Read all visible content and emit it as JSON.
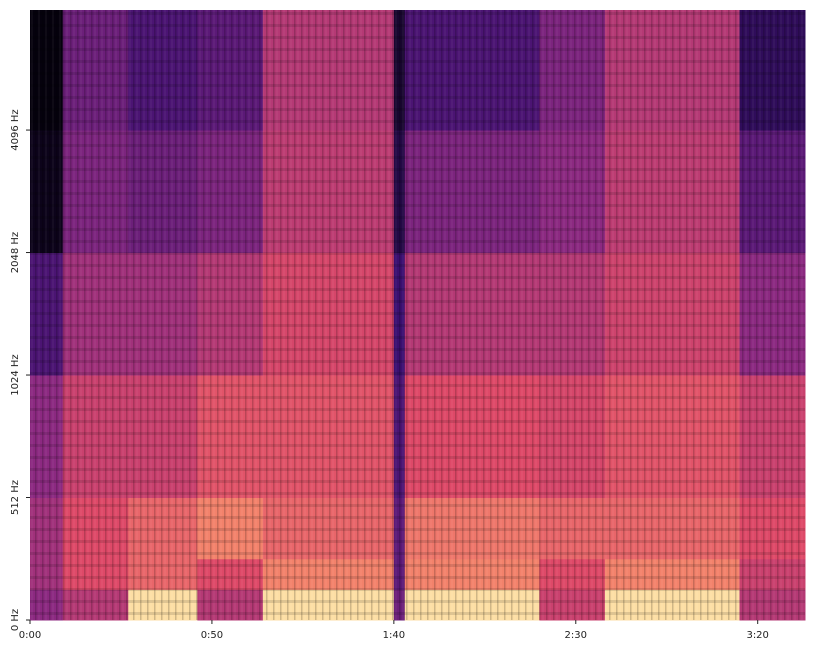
{
  "chart_data": {
    "type": "spectrogram",
    "x": [
      0,
      9,
      27,
      46,
      64,
      100,
      103,
      140,
      158,
      195,
      213
    ],
    "y": [
      0,
      128,
      256,
      512,
      1024,
      2048,
      4096,
      8080
    ],
    "values": [
      [
        0.5,
        0.6,
        0.95,
        0.6,
        0.95,
        0.4,
        0.95,
        0.65,
        0.95,
        0.6
      ],
      [
        0.55,
        0.7,
        0.75,
        0.7,
        0.8,
        0.35,
        0.8,
        0.7,
        0.8,
        0.65
      ],
      [
        0.55,
        0.7,
        0.75,
        0.8,
        0.75,
        0.35,
        0.78,
        0.75,
        0.75,
        0.7
      ],
      [
        0.5,
        0.65,
        0.65,
        0.72,
        0.72,
        0.3,
        0.7,
        0.68,
        0.72,
        0.65
      ],
      [
        0.3,
        0.55,
        0.55,
        0.6,
        0.68,
        0.25,
        0.6,
        0.6,
        0.66,
        0.5
      ],
      [
        0.05,
        0.45,
        0.4,
        0.45,
        0.62,
        0.15,
        0.45,
        0.5,
        0.62,
        0.35
      ],
      [
        0.02,
        0.4,
        0.3,
        0.35,
        0.6,
        0.1,
        0.3,
        0.45,
        0.6,
        0.2
      ]
    ],
    "colormap": "magma",
    "xlim": [
      0,
      213
    ],
    "ylim": [
      0,
      8080
    ],
    "yscale": "symlog",
    "linthresh": 512,
    "xticks": [
      {
        "value": 0,
        "label": "0:00"
      },
      {
        "value": 50,
        "label": "0:50"
      },
      {
        "value": 100,
        "label": "1:40"
      },
      {
        "value": 150,
        "label": "2:30"
      },
      {
        "value": 200,
        "label": "3:20"
      }
    ],
    "yticks": [
      {
        "value": 0,
        "label": "0 Hz"
      },
      {
        "value": 512,
        "label": "512 Hz"
      },
      {
        "value": 1024,
        "label": "1024 Hz"
      },
      {
        "value": 2048,
        "label": "2048 Hz"
      },
      {
        "value": 4096,
        "label": "4096 Hz"
      }
    ]
  }
}
